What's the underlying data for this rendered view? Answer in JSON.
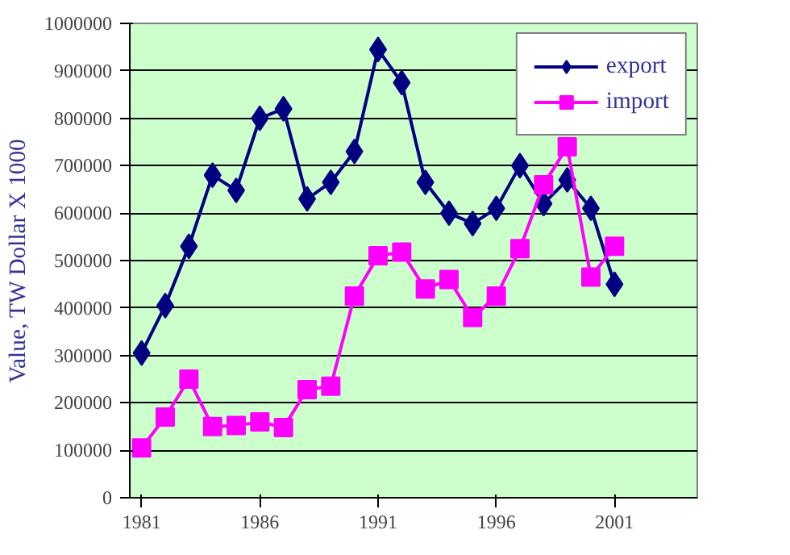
{
  "chart_data": {
    "type": "line",
    "ylabel": "Value, TW Dollar X 1000",
    "x": [
      1981,
      1982,
      1983,
      1984,
      1985,
      1986,
      1987,
      1988,
      1989,
      1990,
      1991,
      1992,
      1993,
      1994,
      1995,
      1996,
      1997,
      1998,
      1999,
      2000,
      2001
    ],
    "xlim": [
      1980.5,
      2004.5
    ],
    "xticks": [
      1981,
      1986,
      1991,
      1996,
      2001
    ],
    "ylim": [
      0,
      1000000
    ],
    "yticks": [
      0,
      100000,
      200000,
      300000,
      400000,
      500000,
      600000,
      700000,
      800000,
      900000,
      1000000
    ],
    "grid": "y",
    "legend": "top right",
    "line_style": "solid",
    "series": [
      {
        "name": "export",
        "color": "#000080",
        "marker": "diamond",
        "values": [
          305000,
          405000,
          530000,
          680000,
          648000,
          800000,
          820000,
          630000,
          665000,
          730000,
          945000,
          875000,
          665000,
          600000,
          578000,
          610000,
          700000,
          620000,
          670000,
          610000,
          450000
        ]
      },
      {
        "name": "import",
        "color": "#ff00ff",
        "marker": "square",
        "values": [
          105000,
          170000,
          250000,
          150000,
          152000,
          160000,
          148000,
          228000,
          235000,
          425000,
          510000,
          518000,
          440000,
          460000,
          380000,
          425000,
          525000,
          660000,
          740000,
          465000,
          530000
        ]
      }
    ]
  }
}
